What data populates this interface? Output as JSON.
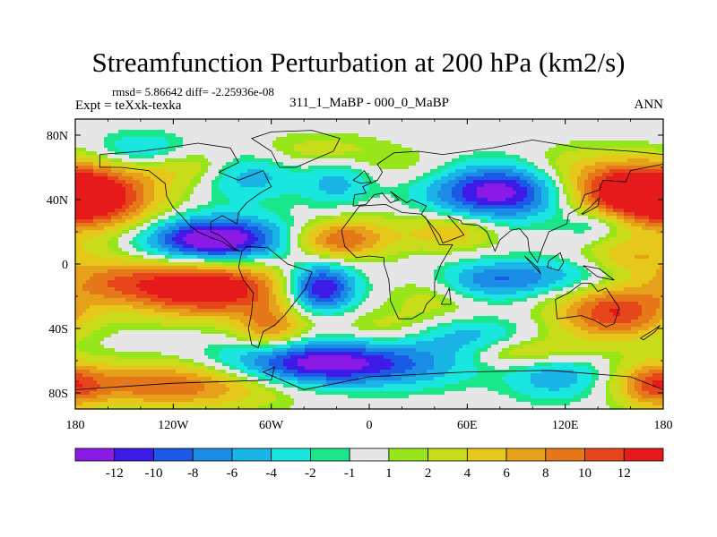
{
  "chart_data": {
    "type": "contour-map",
    "title": "Streamfunction Perturbation at 200 hPa (km2/s)",
    "stats_text": "rmsd= 5.86642 diff= -2.25936e-08",
    "left_label": "Expt = teXxk-texka",
    "center_label": "311_1_MaBP - 000_0_MaBP",
    "right_label": "ANN",
    "xlim": [
      -180,
      180
    ],
    "ylim": [
      -90,
      90
    ],
    "x_ticks": [
      {
        "value": -180,
        "label": "180"
      },
      {
        "value": -120,
        "label": "120W"
      },
      {
        "value": -60,
        "label": "60W"
      },
      {
        "value": 0,
        "label": "0"
      },
      {
        "value": 60,
        "label": "60E"
      },
      {
        "value": 120,
        "label": "120E"
      },
      {
        "value": 180,
        "label": "180"
      }
    ],
    "y_ticks": [
      {
        "value": 80,
        "label": "80N"
      },
      {
        "value": 40,
        "label": "40N"
      },
      {
        "value": 0,
        "label": "0"
      },
      {
        "value": -40,
        "label": "40S"
      },
      {
        "value": -80,
        "label": "80S"
      }
    ],
    "colorbar": {
      "colors": [
        "#8c1ae6",
        "#3d1ae6",
        "#1a5ae6",
        "#1a8ce6",
        "#1ab4e6",
        "#1ae6e0",
        "#1ae68c",
        "#e6e6e6",
        "#96e61a",
        "#c8dc1a",
        "#e6c81a",
        "#e6a01a",
        "#e6781a",
        "#e6461a",
        "#e61a1a"
      ],
      "labels": [
        "-12",
        "-10",
        "-8",
        "-6",
        "-4",
        "-2",
        "-1",
        "1",
        "2",
        "4",
        "6",
        "8",
        "10",
        "12"
      ]
    },
    "centers": [
      {
        "lon": -95,
        "lat": 15,
        "value": -16,
        "rx": 30,
        "ry": 10
      },
      {
        "lon": -30,
        "lat": -15,
        "value": -14,
        "rx": 15,
        "ry": 10
      },
      {
        "lon": 80,
        "lat": 45,
        "value": -14,
        "rx": 30,
        "ry": 12
      },
      {
        "lon": -45,
        "lat": -62,
        "value": -10,
        "rx": 35,
        "ry": 10
      },
      {
        "lon": 5,
        "lat": -62,
        "value": -8,
        "rx": 40,
        "ry": 10
      },
      {
        "lon": 100,
        "lat": -8,
        "value": -6,
        "rx": 35,
        "ry": 8
      },
      {
        "lon": -75,
        "lat": 55,
        "value": -6,
        "rx": 20,
        "ry": 10
      },
      {
        "lon": -20,
        "lat": 50,
        "value": -5,
        "rx": 15,
        "ry": 10
      },
      {
        "lon": -140,
        "lat": 70,
        "value": -5,
        "rx": 20,
        "ry": 8
      },
      {
        "lon": 140,
        "lat": 25,
        "value": -4,
        "rx": 15,
        "ry": 7
      },
      {
        "lon": 115,
        "lat": -70,
        "value": -6,
        "rx": 20,
        "ry": 10
      },
      {
        "lon": 60,
        "lat": -45,
        "value": -5,
        "rx": 25,
        "ry": 8
      },
      {
        "lon": 70,
        "lat": -12,
        "value": -4,
        "rx": 20,
        "ry": 8
      },
      {
        "lon": -100,
        "lat": -15,
        "value": 16,
        "rx": 35,
        "ry": 12
      },
      {
        "lon": -170,
        "lat": 40,
        "value": 12,
        "rx": 30,
        "ry": 15
      },
      {
        "lon": 160,
        "lat": 45,
        "value": 13,
        "rx": 30,
        "ry": 12
      },
      {
        "lon": -20,
        "lat": 15,
        "value": 9,
        "rx": 20,
        "ry": 8
      },
      {
        "lon": -160,
        "lat": -10,
        "value": 6,
        "rx": 25,
        "ry": 10
      },
      {
        "lon": 150,
        "lat": -30,
        "value": 12,
        "rx": 25,
        "ry": 12
      },
      {
        "lon": -120,
        "lat": -75,
        "value": 10,
        "rx": 50,
        "ry": 10
      },
      {
        "lon": 50,
        "lat": 20,
        "value": 6,
        "rx": 20,
        "ry": 8
      },
      {
        "lon": -60,
        "lat": -40,
        "value": 8,
        "rx": 15,
        "ry": 10
      },
      {
        "lon": 175,
        "lat": -75,
        "value": 8,
        "rx": 15,
        "ry": 10
      },
      {
        "lon": 95,
        "lat": -55,
        "value": 5,
        "rx": 25,
        "ry": 7
      },
      {
        "lon": 40,
        "lat": -20,
        "value": 3,
        "rx": 20,
        "ry": 10
      },
      {
        "lon": -110,
        "lat": 60,
        "value": 4,
        "rx": 25,
        "ry": 8
      },
      {
        "lon": -30,
        "lat": 70,
        "value": 3,
        "rx": 30,
        "ry": 8
      },
      {
        "lon": 0,
        "lat": 20,
        "value": 2,
        "rx": 20,
        "ry": 12
      },
      {
        "lon": 10,
        "lat": -40,
        "value": 3,
        "rx": 25,
        "ry": 8
      },
      {
        "lon": 120,
        "lat": 60,
        "value": 3,
        "rx": 25,
        "ry": 10
      },
      {
        "lon": 160,
        "lat": 5,
        "value": 5,
        "rx": 20,
        "ry": 8
      },
      {
        "lon": 30,
        "lat": 60,
        "value": 2,
        "rx": 25,
        "ry": 8
      }
    ],
    "coastlines": [
      [
        [
          -165,
          68
        ],
        [
          -140,
          70
        ],
        [
          -125,
          72
        ],
        [
          -105,
          75
        ],
        [
          -85,
          72
        ],
        [
          -80,
          63
        ],
        [
          -92,
          57
        ],
        [
          -80,
          52
        ],
        [
          -65,
          58
        ],
        [
          -60,
          48
        ],
        [
          -67,
          44
        ],
        [
          -75,
          38
        ],
        [
          -80,
          32
        ],
        [
          -81,
          25
        ],
        [
          -90,
          30
        ],
        [
          -97,
          26
        ],
        [
          -97,
          20
        ],
        [
          -92,
          18
        ],
        [
          -88,
          15
        ],
        [
          -83,
          10
        ],
        [
          -79,
          8
        ],
        [
          -83,
          9
        ],
        [
          -90,
          14
        ],
        [
          -96,
          16
        ],
        [
          -105,
          20
        ],
        [
          -110,
          24
        ],
        [
          -115,
          30
        ],
        [
          -120,
          35
        ],
        [
          -124,
          42
        ],
        [
          -125,
          50
        ],
        [
          -135,
          58
        ],
        [
          -152,
          60
        ],
        [
          -165,
          60
        ],
        [
          -165,
          68
        ]
      ],
      [
        [
          -78,
          8
        ],
        [
          -75,
          11
        ],
        [
          -62,
          10
        ],
        [
          -50,
          0
        ],
        [
          -35,
          -5
        ],
        [
          -39,
          -15
        ],
        [
          -45,
          -23
        ],
        [
          -52,
          -32
        ],
        [
          -58,
          -38
        ],
        [
          -65,
          -42
        ],
        [
          -68,
          -52
        ],
        [
          -72,
          -50
        ],
        [
          -74,
          -40
        ],
        [
          -72,
          -30
        ],
        [
          -71,
          -18
        ],
        [
          -77,
          -10
        ],
        [
          -80,
          -2
        ],
        [
          -78,
          8
        ]
      ],
      [
        [
          -55,
          60
        ],
        [
          -45,
          60
        ],
        [
          -22,
          70
        ],
        [
          -18,
          78
        ],
        [
          -35,
          83
        ],
        [
          -60,
          82
        ],
        [
          -72,
          78
        ],
        [
          -60,
          70
        ],
        [
          -55,
          60
        ]
      ],
      [
        [
          -10,
          36
        ],
        [
          -9,
          43
        ],
        [
          -2,
          44
        ],
        [
          -4,
          48
        ],
        [
          5,
          52
        ],
        [
          8,
          57
        ],
        [
          5,
          62
        ],
        [
          15,
          69
        ],
        [
          30,
          70
        ],
        [
          45,
          68
        ],
        [
          60,
          70
        ],
        [
          75,
          72
        ],
        [
          100,
          77
        ],
        [
          130,
          72
        ],
        [
          160,
          70
        ],
        [
          180,
          68
        ],
        [
          180,
          62
        ],
        [
          170,
          60
        ],
        [
          160,
          58
        ],
        [
          157,
          51
        ],
        [
          143,
          52
        ],
        [
          141,
          46
        ],
        [
          132,
          43
        ],
        [
          129,
          35
        ],
        [
          122,
          31
        ],
        [
          121,
          25
        ],
        [
          110,
          20
        ],
        [
          106,
          10
        ],
        [
          103,
          1
        ],
        [
          98,
          8
        ],
        [
          97,
          16
        ],
        [
          92,
          22
        ],
        [
          87,
          21
        ],
        [
          80,
          15
        ],
        [
          77,
          8
        ],
        [
          72,
          20
        ],
        [
          67,
          24
        ],
        [
          57,
          25
        ],
        [
          56,
          27
        ],
        [
          52,
          28
        ],
        [
          48,
          30
        ],
        [
          55,
          22
        ],
        [
          58,
          18
        ],
        [
          45,
          13
        ],
        [
          43,
          18
        ],
        [
          35,
          28
        ],
        [
          32,
          31
        ],
        [
          35,
          36
        ],
        [
          26,
          40
        ],
        [
          23,
          38
        ],
        [
          20,
          40
        ],
        [
          13,
          45
        ],
        [
          18,
          40
        ],
        [
          13,
          38
        ],
        [
          8,
          44
        ],
        [
          3,
          43
        ],
        [
          -2,
          37
        ],
        [
          -10,
          36
        ]
      ],
      [
        [
          -17,
          21
        ],
        [
          -6,
          36
        ],
        [
          10,
          37
        ],
        [
          20,
          32
        ],
        [
          32,
          31
        ],
        [
          35,
          28
        ],
        [
          43,
          12
        ],
        [
          51,
          12
        ],
        [
          44,
          0
        ],
        [
          40,
          -11
        ],
        [
          40,
          -20
        ],
        [
          35,
          -25
        ],
        [
          33,
          -30
        ],
        [
          26,
          -34
        ],
        [
          18,
          -34
        ],
        [
          13,
          -23
        ],
        [
          12,
          -10
        ],
        [
          9,
          0
        ],
        [
          9,
          4
        ],
        [
          0,
          5
        ],
        [
          -8,
          4
        ],
        [
          -15,
          11
        ],
        [
          -17,
          21
        ]
      ],
      [
        [
          44,
          -25
        ],
        [
          49,
          -15
        ],
        [
          50,
          -25
        ],
        [
          44,
          -25
        ]
      ],
      [
        [
          114,
          -22
        ],
        [
          122,
          -18
        ],
        [
          130,
          -12
        ],
        [
          136,
          -12
        ],
        [
          140,
          -17
        ],
        [
          145,
          -15
        ],
        [
          153,
          -27
        ],
        [
          150,
          -37
        ],
        [
          145,
          -39
        ],
        [
          138,
          -35
        ],
        [
          130,
          -32
        ],
        [
          115,
          -34
        ],
        [
          114,
          -22
        ]
      ],
      [
        [
          -180,
          -78
        ],
        [
          -120,
          -74
        ],
        [
          -60,
          -72
        ],
        [
          -58,
          -64
        ],
        [
          -65,
          -67
        ],
        [
          -40,
          -78
        ],
        [
          0,
          -70
        ],
        [
          60,
          -67
        ],
        [
          110,
          -66
        ],
        [
          160,
          -70
        ],
        [
          180,
          -78
        ]
      ],
      [
        [
          -10,
          52
        ],
        [
          -6,
          55
        ],
        [
          -3,
          58
        ],
        [
          0,
          53
        ],
        [
          1,
          51
        ],
        [
          -5,
          50
        ],
        [
          -10,
          52
        ]
      ],
      [
        [
          130,
          31
        ],
        [
          135,
          35
        ],
        [
          141,
          41
        ],
        [
          140,
          36
        ],
        [
          131,
          31
        ],
        [
          130,
          31
        ]
      ],
      [
        [
          95,
          5
        ],
        [
          105,
          -6
        ],
        [
          103,
          -2
        ],
        [
          95,
          5
        ]
      ],
      [
        [
          109,
          -2
        ],
        [
          110,
          2
        ],
        [
          117,
          7
        ],
        [
          119,
          1
        ],
        [
          116,
          -4
        ],
        [
          109,
          -2
        ]
      ],
      [
        [
          131,
          -1
        ],
        [
          141,
          -3
        ],
        [
          150,
          -10
        ],
        [
          140,
          -8
        ],
        [
          131,
          -1
        ]
      ],
      [
        [
          166,
          -46
        ],
        [
          174,
          -41
        ],
        [
          178,
          -38
        ],
        [
          175,
          -42
        ],
        [
          168,
          -47
        ],
        [
          166,
          -46
        ]
      ]
    ]
  }
}
